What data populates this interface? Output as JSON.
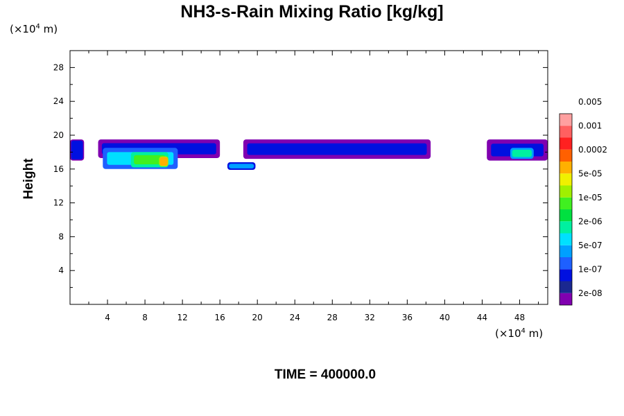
{
  "chart_data": {
    "type": "heatmap",
    "title": "NH3-s-Rain Mixing Ratio [kg/kg]",
    "xlabel": "",
    "ylabel": "Height",
    "x_unit": "(×10",
    "x_unit_exp": "4",
    "x_unit_tail": " m)",
    "y_unit": "(×10",
    "y_unit_exp": "4",
    "y_unit_tail": " m)",
    "xlim": [
      0,
      51
    ],
    "ylim": [
      0,
      30
    ],
    "x_ticks": [
      "4",
      "8",
      "12",
      "16",
      "20",
      "24",
      "28",
      "32",
      "36",
      "40",
      "44",
      "48"
    ],
    "y_ticks": [
      "4",
      "8",
      "12",
      "16",
      "20",
      "24",
      "28"
    ],
    "colorbar": {
      "colors": [
        "#8000b0",
        "#1a2890",
        "#0010e0",
        "#1e60ff",
        "#00a0ff",
        "#00e0ff",
        "#00f0a0",
        "#00e040",
        "#40f020",
        "#a0f000",
        "#f0f000",
        "#ffb000",
        "#ff6000",
        "#ff2020",
        "#ff6060",
        "#ffa0a0"
      ],
      "labels": [
        "2e-08",
        "1e-07",
        "5e-07",
        "2e-06",
        "1e-05",
        "5e-05",
        "0.0002",
        "0.001",
        "0.005"
      ]
    },
    "regions": [
      {
        "x": [
          0,
          1.5
        ],
        "y": [
          17,
          19.5
        ],
        "level": 2
      },
      {
        "x": [
          3,
          16
        ],
        "y": [
          17.3,
          19.5
        ],
        "level": 2
      },
      {
        "x": [
          3.5,
          11.5
        ],
        "y": [
          16,
          18.5
        ],
        "level": 5
      },
      {
        "x": [
          6.5,
          10.5
        ],
        "y": [
          16.2,
          18
        ],
        "level": 8
      },
      {
        "x": [
          9.5,
          10.5
        ],
        "y": [
          16.3,
          17.5
        ],
        "level": 11
      },
      {
        "x": [
          16.8,
          19.8
        ],
        "y": [
          15.9,
          16.8
        ],
        "level": 4
      },
      {
        "x": [
          18.5,
          38.5
        ],
        "y": [
          17.2,
          19.5
        ],
        "level": 2
      },
      {
        "x": [
          44.5,
          51
        ],
        "y": [
          17,
          19.5
        ],
        "level": 2
      },
      {
        "x": [
          47,
          49.5
        ],
        "y": [
          17.2,
          18.5
        ],
        "level": 6
      }
    ],
    "time_label": "TIME = 400000.0"
  }
}
